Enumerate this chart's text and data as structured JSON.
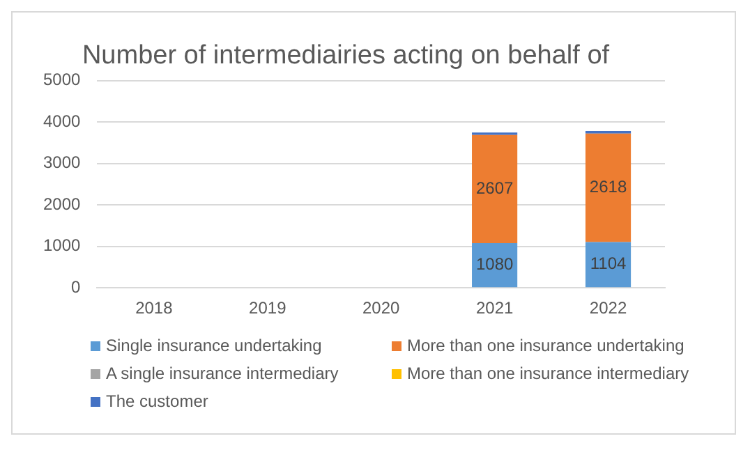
{
  "chart_data": {
    "type": "bar",
    "title": "Number of intermediairies acting on behalf of",
    "categories": [
      "2018",
      "2019",
      "2020",
      "2021",
      "2022"
    ],
    "stacked": true,
    "legend": "bottom",
    "grid": "y",
    "ylim": [
      0,
      5000
    ],
    "yticks": [
      0,
      1000,
      2000,
      3000,
      4000,
      5000
    ],
    "series": [
      {
        "name": "Single insurance undertaking",
        "color": "#5b9bd5",
        "values": [
          null,
          null,
          null,
          1080,
          1104
        ],
        "value_labels": [
          null,
          null,
          null,
          "1080",
          "1104"
        ]
      },
      {
        "name": "More than one insurance undertaking",
        "color": "#ed7d31",
        "values": [
          null,
          null,
          null,
          2607,
          2618
        ],
        "value_labels": [
          null,
          null,
          null,
          "2607",
          "2618"
        ]
      },
      {
        "name": "A single insurance intermediary",
        "color": "#a5a5a5",
        "values": [
          null,
          null,
          null,
          null,
          null
        ]
      },
      {
        "name": "More than one insurance intermediary",
        "color": "#ffc000",
        "values": [
          null,
          null,
          null,
          0,
          0
        ]
      },
      {
        "name": "The customer",
        "color": "#4472c4",
        "values": [
          null,
          null,
          null,
          60,
          60
        ]
      }
    ]
  }
}
